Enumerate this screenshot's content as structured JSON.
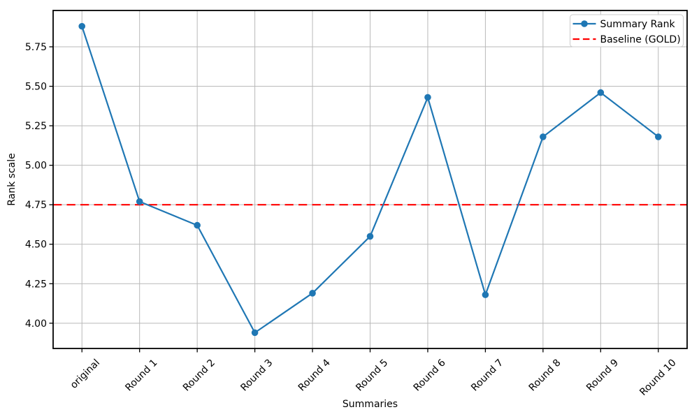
{
  "figure": {
    "background": "#ffffff"
  },
  "chart_data": {
    "type": "line",
    "title": "",
    "xlabel": "Summaries",
    "ylabel": "Rank scale",
    "categories": [
      "original",
      "Round 1",
      "Round 2",
      "Round 3",
      "Round 4",
      "Round 5",
      "Round 6",
      "Round 7",
      "Round 8",
      "Round 9",
      "Round 10"
    ],
    "series": [
      {
        "name": "Summary Rank",
        "color": "#1f77b4",
        "marker": "circle",
        "line_style": "solid",
        "values": [
          5.88,
          4.77,
          4.62,
          3.94,
          4.19,
          4.55,
          5.43,
          4.18,
          5.18,
          5.46,
          5.18
        ]
      }
    ],
    "baseline": {
      "name": "Baseline (GOLD)",
      "value": 4.75,
      "color": "#ff0000",
      "line_style": "dashed"
    },
    "ylim": [
      3.84,
      5.98
    ],
    "yticks": [
      4.0,
      4.25,
      4.5,
      4.75,
      5.0,
      5.25,
      5.5,
      5.75
    ],
    "ytick_decimals": 2,
    "xtick_rotation_deg": 45,
    "grid": true,
    "legend_position": "upper right",
    "legend_entries": [
      "Summary Rank",
      "Baseline (GOLD)"
    ]
  },
  "style": {
    "grid_color": "#b9b9b9",
    "spine_color": "#000000",
    "tick_color": "#000000",
    "text_color": "#000000",
    "legend_border_color": "#cccccc",
    "legend_background": "#ffffff"
  }
}
